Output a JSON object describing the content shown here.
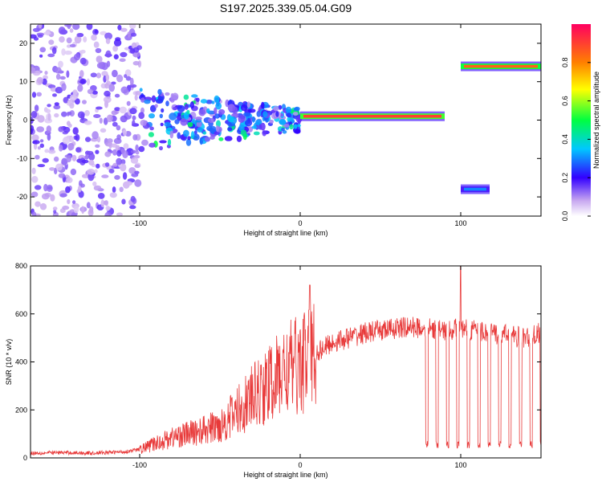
{
  "figure_title": "S197.2025.339.05.04.G09",
  "colors": {
    "snr_line": "#e83a3a",
    "axis": "#000000",
    "background": "#ffffff"
  },
  "chart_data": [
    {
      "type": "heatmap",
      "title": "",
      "xlabel": "Height of straight line (km)",
      "ylabel": "Frequency (Hz)",
      "xlim": [
        -168,
        150
      ],
      "ylim": [
        -25,
        25
      ],
      "xticks": [
        -100,
        0,
        100
      ],
      "xtick_labels": [
        "-100",
        "0",
        "100"
      ],
      "yticks": [
        -20,
        -10,
        0,
        10,
        20
      ],
      "ytick_labels": [
        "-20",
        "-10",
        "0",
        "10",
        "20"
      ],
      "colorbar": {
        "label": "Normalized spectral amplitude",
        "range": [
          0,
          1
        ],
        "ticks": [
          0.0,
          0.2,
          0.4,
          0.6,
          0.8
        ],
        "tick_labels": [
          "0.0",
          "0.2",
          "0.4",
          "0.6",
          "0.8"
        ]
      },
      "features": [
        {
          "name": "low-altitude noise",
          "x_range": [
            -168,
            -100
          ],
          "freq_range": [
            -25,
            25
          ],
          "amplitude": 0.15
        },
        {
          "name": "emerging signal",
          "x_range": [
            -100,
            0
          ],
          "freq_range": [
            -8,
            8
          ],
          "amplitude": 0.3
        },
        {
          "name": "main tone",
          "x_range": [
            0,
            90
          ],
          "freq_hz": 1,
          "amplitude": 0.9
        },
        {
          "name": "shifted tone",
          "x_range": [
            100,
            150
          ],
          "freq_hz": 14,
          "amplitude": 0.85
        },
        {
          "name": "mirror tone",
          "x_range": [
            100,
            118
          ],
          "freq_hz": -18,
          "amplitude": 0.3
        }
      ]
    },
    {
      "type": "line",
      "title": "",
      "xlabel": "Height of straight line (km)",
      "ylabel": "SNR (10 * v/v)",
      "xlim": [
        -168,
        150
      ],
      "ylim": [
        0,
        800
      ],
      "xticks": [
        -100,
        0,
        100
      ],
      "xtick_labels": [
        "-100",
        "0",
        "100"
      ],
      "yticks": [
        0,
        200,
        400,
        600,
        800
      ],
      "ytick_labels": [
        "0",
        "200",
        "400",
        "600",
        "800"
      ],
      "series": [
        {
          "name": "SNR",
          "x": [
            -168,
            -150,
            -130,
            -110,
            -100,
            -90,
            -80,
            -70,
            -60,
            -50,
            -40,
            -30,
            -20,
            -10,
            0,
            10,
            20,
            30,
            40,
            50,
            60,
            70,
            80,
            90,
            100,
            110,
            120,
            130,
            140,
            150
          ],
          "y": [
            20,
            22,
            20,
            25,
            35,
            60,
            85,
            100,
            115,
            135,
            190,
            250,
            300,
            360,
            390,
            440,
            480,
            500,
            520,
            530,
            540,
            545,
            540,
            530,
            540,
            530,
            520,
            510,
            500,
            520
          ],
          "dropouts": [
            {
              "x_start": 78,
              "x_end": 150,
              "low": 40
            }
          ],
          "peaks": [
            {
              "x": 6,
              "y": 720
            },
            {
              "x": 100,
              "y": 800
            }
          ]
        }
      ]
    }
  ]
}
